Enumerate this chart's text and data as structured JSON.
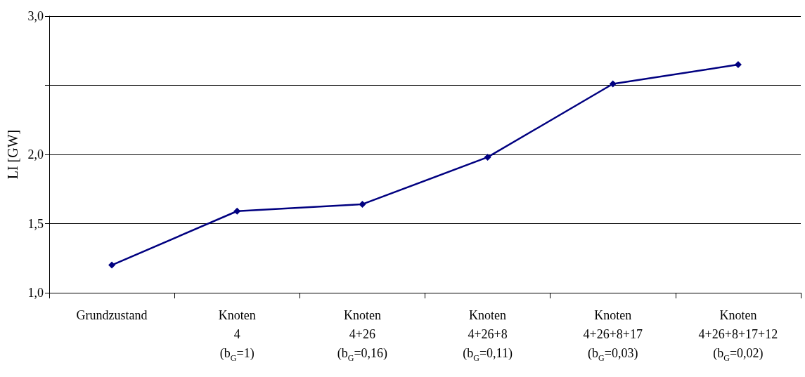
{
  "chart_data": {
    "type": "line",
    "ylabel": "LI [GW]",
    "categories": [
      "Grundzustand",
      "Knoten\n4\n(b$_{G}$=1)",
      "Knoten\n4+26\n(b$_{G}$=0,16)",
      "Knoten\n4+26+8\n(b$_{G}$=0,11)",
      "Knoten\n4+26+8+17\n(b$_{G}$=0,03)",
      "Knoten\n4+26+8+17+12\n(b$_{G}$=0,02)"
    ],
    "series": [
      {
        "color": "#000080",
        "values": [
          1.2,
          1.59,
          1.64,
          1.98,
          2.51,
          2.65
        ]
      }
    ],
    "ylim": [
      1,
      3
    ],
    "yticks": [
      {
        "value": 1,
        "label": "1,0"
      },
      {
        "value": 1.5,
        "label": "1,5"
      },
      {
        "value": 2,
        "label": "2,0"
      },
      {
        "value": 2.5,
        "label": null
      },
      {
        "value": 3,
        "label": "3,0"
      }
    ],
    "grid": "y",
    "marker": "diamond",
    "line_style": "solid"
  }
}
